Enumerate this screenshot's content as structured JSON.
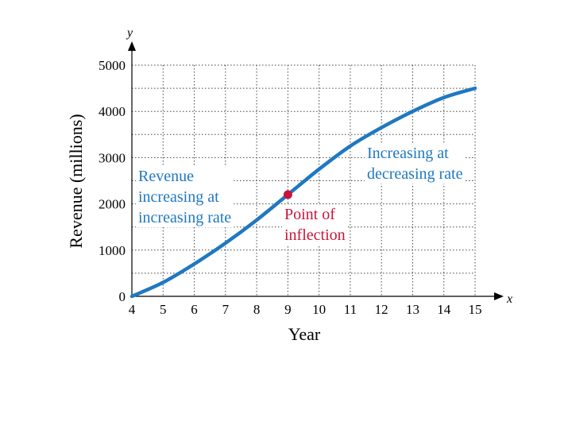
{
  "chart_data": {
    "type": "line",
    "title": "",
    "xlabel": "Year",
    "ylabel": "Revenue (millions)",
    "x_axis_symbol": "x",
    "y_axis_symbol": "y",
    "xlim": [
      4,
      15
    ],
    "ylim": [
      0,
      5000
    ],
    "x_ticks": [
      4,
      5,
      6,
      7,
      8,
      9,
      10,
      11,
      12,
      13,
      14,
      15
    ],
    "y_ticks": [
      0,
      1000,
      2000,
      3000,
      4000,
      5000
    ],
    "grid": true,
    "series": [
      {
        "color": "#1f78c1",
        "x": [
          4,
          5,
          6,
          7,
          8,
          9,
          10,
          11,
          12,
          13,
          14,
          15
        ],
        "y": [
          0,
          300,
          700,
          1150,
          1650,
          2200,
          2750,
          3250,
          3650,
          4000,
          4300,
          4500
        ]
      }
    ],
    "point": {
      "x": 9,
      "y": 2200,
      "color": "#c8143c"
    },
    "annotations": [
      {
        "id": "left",
        "lines": [
          "Revenue",
          "increasing at",
          "increasing rate"
        ],
        "color": "#1f78c1"
      },
      {
        "id": "right",
        "lines": [
          "Increasing at",
          "decreasing rate"
        ],
        "color": "#1f78c1"
      },
      {
        "id": "point",
        "lines": [
          "Point of",
          "inflection"
        ],
        "color": "#c8143c"
      }
    ]
  }
}
